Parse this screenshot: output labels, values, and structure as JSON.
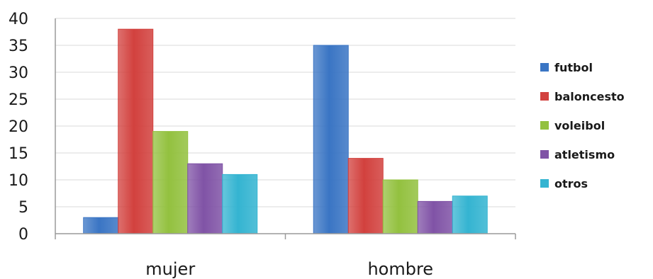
{
  "chart_data": {
    "type": "bar",
    "categories": [
      "mujer",
      "hombre"
    ],
    "series": [
      {
        "name": "futbol",
        "values": [
          3,
          35
        ],
        "color": "#3a75c4"
      },
      {
        "name": "baloncesto",
        "values": [
          38,
          14
        ],
        "color": "#d2413e"
      },
      {
        "name": "voleibol",
        "values": [
          19,
          10
        ],
        "color": "#93c13f"
      },
      {
        "name": "atletismo",
        "values": [
          13,
          6
        ],
        "color": "#8053a6"
      },
      {
        "name": "otros",
        "values": [
          11,
          7
        ],
        "color": "#34b4d1"
      }
    ],
    "yticks": [
      "0",
      "5",
      "10",
      "15",
      "20",
      "25",
      "30",
      "35",
      "40"
    ],
    "ylim": [
      0,
      40
    ],
    "grid": true,
    "legend_position": "right"
  }
}
